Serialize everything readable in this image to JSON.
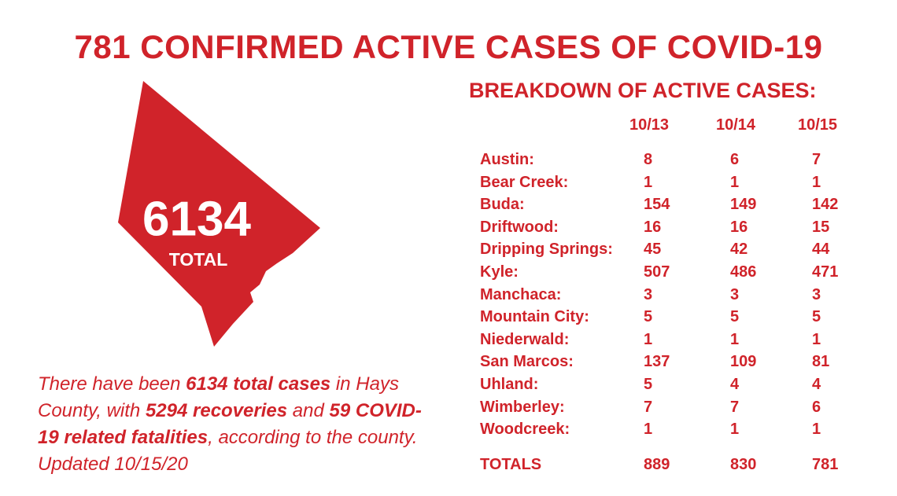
{
  "title": "781 CONFIRMED ACTIVE CASES OF COVID-19",
  "map": {
    "value": "6134",
    "label": "TOTAL"
  },
  "paragraph": [
    {
      "text": "There have been ",
      "bold": false
    },
    {
      "text": "6134 total cases",
      "bold": true
    },
    {
      "text": " in Hays County, with ",
      "bold": false
    },
    {
      "text": "5294 recoveries",
      "bold": true
    },
    {
      "text": " and ",
      "bold": false
    },
    {
      "text": "59 COVID-19 related fatalities",
      "bold": true
    },
    {
      "text": ", according to the county. Updated 10/15/20",
      "bold": false
    }
  ],
  "table": {
    "title": "BREAKDOWN OF ACTIVE CASES:",
    "columns": [
      "10/13",
      "10/14",
      "10/15"
    ],
    "rows": [
      [
        "Austin:",
        8,
        6,
        7
      ],
      [
        "Bear Creek:",
        1,
        1,
        1
      ],
      [
        "Buda:",
        154,
        149,
        142
      ],
      [
        "Driftwood:",
        16,
        16,
        15
      ],
      [
        "Dripping Springs:",
        45,
        42,
        44
      ],
      [
        "Kyle:",
        507,
        486,
        471
      ],
      [
        "Manchaca:",
        3,
        3,
        3
      ],
      [
        "Mountain City:",
        5,
        5,
        5
      ],
      [
        "Niederwald:",
        1,
        1,
        1
      ],
      [
        "San Marcos:",
        137,
        109,
        81
      ],
      [
        "Uhland:",
        5,
        4,
        4
      ],
      [
        "Wimberley:",
        7,
        7,
        6
      ],
      [
        "Woodcreek:",
        1,
        1,
        1
      ]
    ],
    "totals": [
      "TOTALS",
      889,
      830,
      781
    ]
  }
}
